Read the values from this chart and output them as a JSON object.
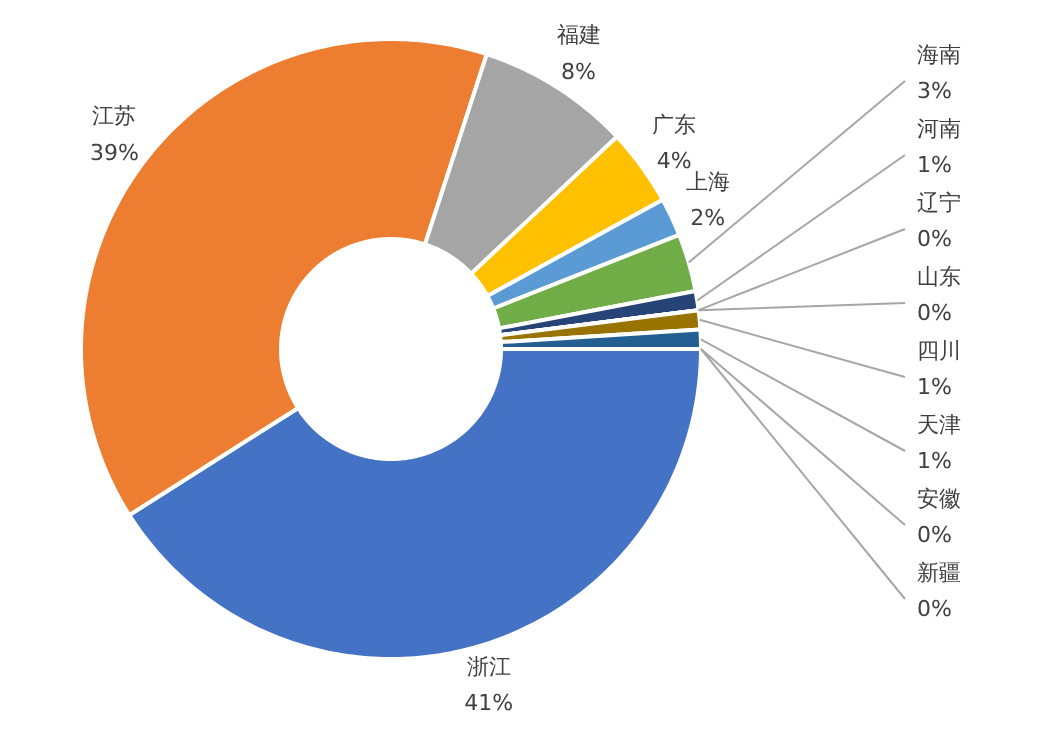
{
  "chart_data": {
    "type": "donut",
    "categories": [
      "浙江",
      "江苏",
      "福建",
      "广东",
      "上海",
      "海南",
      "河南",
      "辽宁",
      "山东",
      "四川",
      "天津",
      "安徽",
      "新疆"
    ],
    "values": [
      41,
      39,
      8,
      4,
      2,
      3,
      1,
      0,
      0,
      1,
      1,
      0,
      0
    ],
    "value_labels": [
      "41%",
      "39%",
      "8%",
      "4%",
      "2%",
      "3%",
      "1%",
      "0%",
      "0%",
      "1%",
      "1%",
      "0%",
      "0%"
    ],
    "colors": [
      "#4472c4",
      "#ed7d31",
      "#a5a5a5",
      "#ffc000",
      "#5b9bd5",
      "#70ad47",
      "#264478",
      "#9e480e",
      "#636363",
      "#997300",
      "#255e91",
      "#43682b",
      "#698ed0"
    ]
  }
}
